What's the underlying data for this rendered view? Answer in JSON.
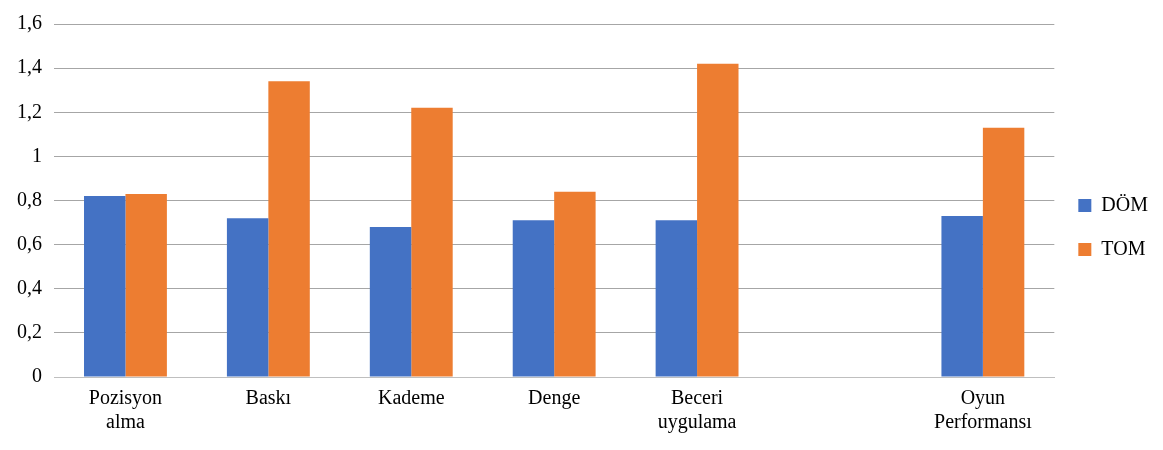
{
  "chart_data": {
    "type": "bar",
    "categories": [
      "Pozisyon alma",
      "Baskı",
      "Kademe",
      "Denge",
      "Beceri uygulama",
      null,
      "Oyun Performansı"
    ],
    "series": [
      {
        "name": "DÖM",
        "color": "#4472c4",
        "values": [
          0.82,
          0.72,
          0.68,
          0.71,
          0.71,
          null,
          0.73
        ]
      },
      {
        "name": "TOM",
        "color": "#ed7d31",
        "values": [
          0.83,
          1.34,
          1.22,
          0.84,
          1.42,
          null,
          1.13
        ]
      }
    ],
    "ylim": [
      0,
      1.6
    ],
    "yticks": [
      0,
      {
        "value": 0.2,
        "label": "0,2"
      },
      {
        "value": 0.4,
        "label": "0,4"
      },
      {
        "value": 0.6,
        "label": "0,6"
      },
      {
        "value": 0.8,
        "label": "0,8"
      },
      1,
      {
        "value": 1.2,
        "label": "1,2"
      },
      {
        "value": 1.4,
        "label": "1,4"
      },
      {
        "value": 1.6,
        "label": "1,6"
      }
    ],
    "grid": "y",
    "legend": "right"
  }
}
